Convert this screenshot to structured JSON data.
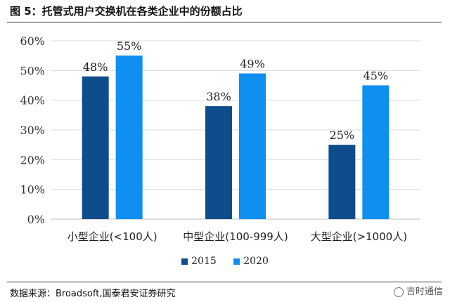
{
  "header": {
    "title": "图 5：托管式用户交换机在各类企业中的份额占比"
  },
  "footer": {
    "source": "数据来源：Broadsoft,国泰君安证券研究",
    "watermark": "吉时通信"
  },
  "colors": {
    "series_2015": "#0f4c8c",
    "series_2020": "#0f8ff0",
    "grid": "#d9d9d9"
  },
  "chart_data": {
    "type": "bar",
    "title": "",
    "xlabel": "",
    "ylabel": "",
    "categories": [
      "小型企业(<100人)",
      "中型企业(100-999人)",
      "大型企业(>1000人)"
    ],
    "series": [
      {
        "name": "2015",
        "values": [
          48,
          38,
          25
        ],
        "labels": [
          "48%",
          "38%",
          "25%"
        ]
      },
      {
        "name": "2020",
        "values": [
          55,
          49,
          45
        ],
        "labels": [
          "55%",
          "49%",
          "45%"
        ]
      }
    ],
    "ylim": [
      0,
      60
    ],
    "yticks": [
      0,
      10,
      20,
      30,
      40,
      50,
      60
    ],
    "ytick_labels": [
      "0%",
      "10%",
      "20%",
      "30%",
      "40%",
      "50%",
      "60%"
    ],
    "grid": true,
    "legend_position": "bottom"
  }
}
